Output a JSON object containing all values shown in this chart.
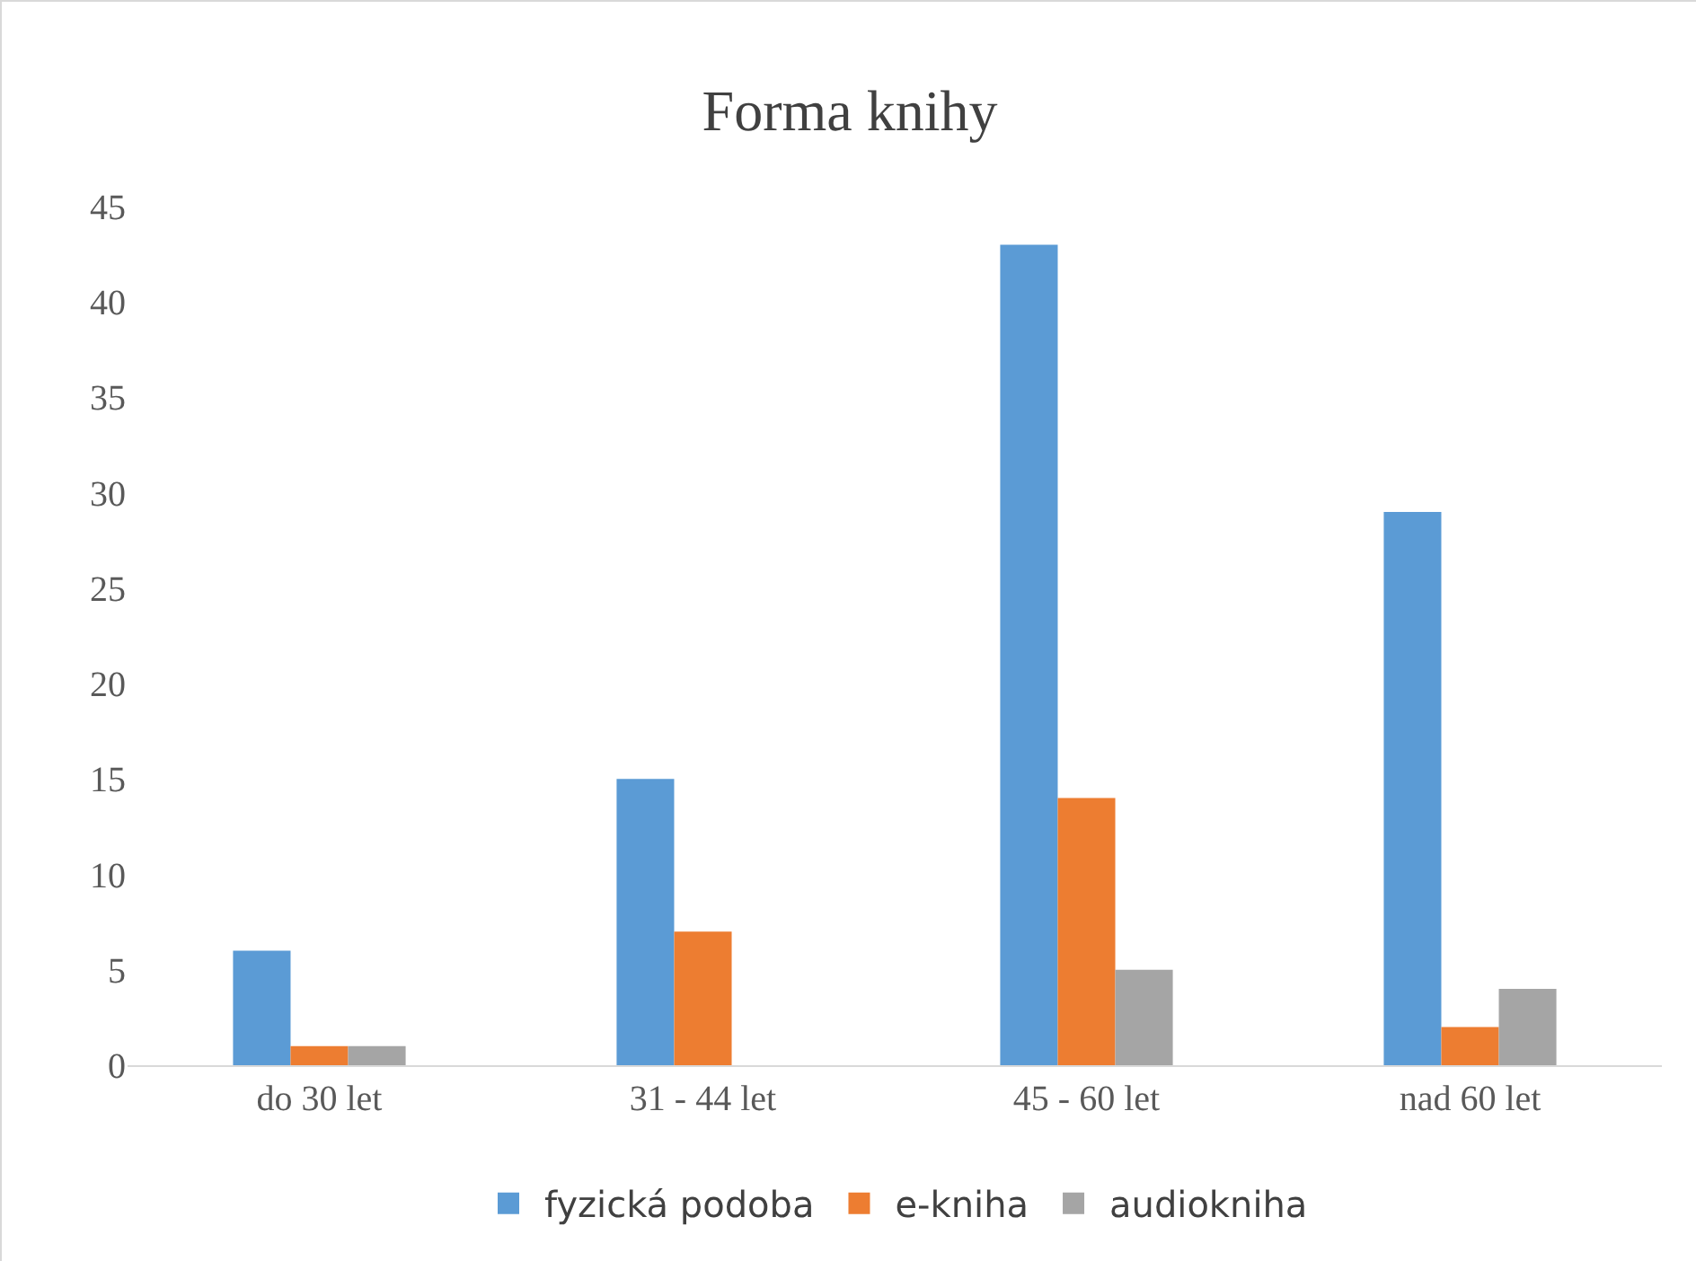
{
  "chart_data": {
    "type": "bar",
    "title": "Forma knihy",
    "categories": [
      "do 30 let",
      "31 - 44 let",
      "45 - 60 let",
      "nad 60 let"
    ],
    "series": [
      {
        "name": "fyzická podoba",
        "color": "#5b9bd5",
        "values": [
          6,
          15,
          43,
          29
        ]
      },
      {
        "name": "e-kniha",
        "color": "#ed7d31",
        "values": [
          1,
          7,
          14,
          2
        ]
      },
      {
        "name": "audiokniha",
        "color": "#a5a5a5",
        "values": [
          1,
          0,
          5,
          4
        ]
      }
    ],
    "ylim": [
      0,
      45
    ],
    "yticks": [
      0,
      5,
      10,
      15,
      20,
      25,
      30,
      35,
      40,
      45
    ],
    "grid": false,
    "legend": "bottom"
  }
}
